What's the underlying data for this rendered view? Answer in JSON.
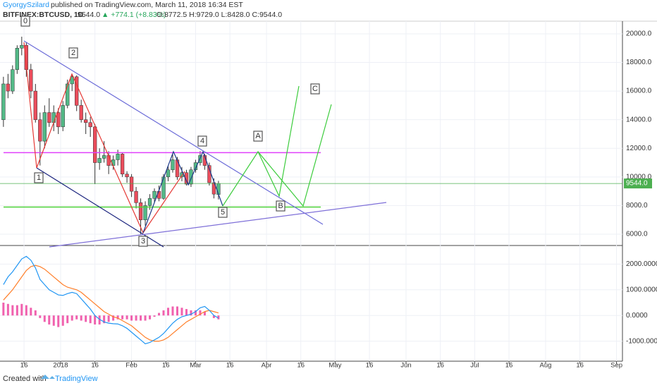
{
  "header": {
    "author": "GyorgySzilard",
    "published": "published on TradingView.com, March 11, 2018 16:34 EST",
    "symbol": "BITFINEX:BTCUSD, 1D",
    "price": "9544.0",
    "change": "▲ +774.1 (+8.83%)",
    "ohlc": "O:8772.5 H:9729.0 L:8428.0 C:9544.0"
  },
  "chart_data": [
    {
      "type": "candlestick",
      "x": [
        7,
        9,
        11,
        13,
        15,
        17,
        19,
        21,
        23,
        25,
        27,
        29,
        31,
        33,
        35,
        37,
        39,
        41,
        43,
        45,
        47,
        49,
        51,
        53,
        55,
        57,
        59,
        61,
        63,
        65,
        67,
        69,
        71,
        73,
        75,
        77,
        79,
        81,
        83,
        85,
        87,
        89,
        91,
        93,
        95,
        97,
        99,
        101
      ],
      "open": [
        14000,
        16500,
        16000,
        17500,
        19000,
        19200,
        17500,
        16000,
        14000,
        12500,
        14500,
        13800,
        14500,
        13500,
        15000,
        16500,
        17000,
        15000,
        14000,
        13800,
        13500,
        11000,
        11300,
        11500,
        10800,
        11200,
        11600,
        10200,
        10000,
        9000,
        8200,
        7000,
        8000,
        8500,
        9000,
        8500,
        10000,
        10500,
        11200,
        10000,
        10300,
        9500,
        10500,
        11000,
        11500,
        10800,
        9600,
        8772.5
      ],
      "high": [
        17000,
        17200,
        17800,
        19200,
        19800,
        19400,
        17900,
        16500,
        14500,
        15000,
        15500,
        15000,
        14800,
        15300,
        16800,
        17200,
        17100,
        15400,
        14500,
        14200,
        13700,
        12000,
        12500,
        11800,
        11500,
        11900,
        11700,
        10400,
        10200,
        9300,
        8500,
        8300,
        8800,
        9200,
        9400,
        10200,
        10800,
        11600,
        11400,
        10700,
        10500,
        10700,
        11200,
        11800,
        11600,
        11000,
        9900,
        9729
      ],
      "low": [
        13500,
        15500,
        15800,
        17200,
        18500,
        17000,
        15500,
        13800,
        10800,
        12000,
        13500,
        13200,
        13000,
        13200,
        14800,
        16000,
        14600,
        13800,
        13000,
        12800,
        9500,
        10500,
        11000,
        10200,
        10500,
        10800,
        10000,
        9600,
        8600,
        7800,
        6000,
        6600,
        7700,
        8200,
        8300,
        8400,
        9700,
        10300,
        9800,
        9700,
        9400,
        9300,
        10300,
        10800,
        10500,
        9400,
        8500,
        8428
      ],
      "close": [
        16500,
        16000,
        17500,
        19000,
        19200,
        17500,
        16000,
        14000,
        12500,
        14500,
        13800,
        14500,
        13500,
        15000,
        16500,
        17000,
        15000,
        14000,
        13800,
        13500,
        11000,
        11300,
        11500,
        10800,
        11200,
        11600,
        10200,
        10000,
        9000,
        8200,
        7000,
        8000,
        8500,
        9000,
        8500,
        10000,
        10500,
        11200,
        10000,
        10300,
        9500,
        10500,
        11000,
        11500,
        10800,
        9600,
        8800,
        9544
      ],
      "up_color": "#53b987",
      "down_color": "#eb4d5c",
      "xlim": [
        5.5,
        277.6
      ],
      "ylim": [
        5211,
        20885
      ],
      "yticks": [
        {
          "value": 6000,
          "label": "6000.0"
        },
        {
          "value": 8000,
          "label": "8000.0"
        },
        {
          "value": 10000,
          "label": "10000.0"
        },
        {
          "value": 12000,
          "label": "12000.0"
        },
        {
          "value": 14000,
          "label": "14000.0"
        },
        {
          "value": 16000,
          "label": "16000.0"
        },
        {
          "value": 18000,
          "label": "18000.0"
        },
        {
          "value": 20000,
          "label": "20000.0"
        }
      ],
      "price_line": {
        "value": 9544,
        "label": "9544.0",
        "color": "#4caf50"
      },
      "hlines": [
        {
          "value": 11700,
          "color": "#e040fb"
        },
        {
          "value": 7900,
          "color": "#4cd137"
        }
      ],
      "annotations": [
        "0",
        "1",
        "2",
        "3",
        "4",
        "5",
        "A",
        "B",
        "C"
      ]
    },
    {
      "type": "macd",
      "x": [
        7,
        9,
        11,
        13,
        15,
        17,
        19,
        21,
        23,
        25,
        27,
        29,
        31,
        33,
        35,
        37,
        39,
        41,
        43,
        45,
        47,
        49,
        51,
        53,
        55,
        57,
        59,
        61,
        63,
        65,
        67,
        69,
        71,
        73,
        75,
        77,
        79,
        81,
        83,
        85,
        87,
        89,
        91,
        93,
        95,
        97,
        99,
        101
      ],
      "xlim": [
        5.5,
        277.6
      ],
      "ylim": [
        -1778,
        2722
      ],
      "yticks": [
        {
          "value": -1000,
          "label": "-1000.0000"
        },
        {
          "value": 0,
          "label": "0.0000"
        },
        {
          "value": 1000,
          "label": "1000.0000"
        },
        {
          "value": 2000,
          "label": "2000.0000"
        }
      ],
      "xticks": [
        {
          "value": 16,
          "label": "16"
        },
        {
          "value": 32,
          "label": "2018"
        },
        {
          "value": 47,
          "label": "16"
        },
        {
          "value": 63,
          "label": "Feb"
        },
        {
          "value": 78,
          "label": "16"
        },
        {
          "value": 91,
          "label": "Mar"
        },
        {
          "value": 106,
          "label": "16"
        },
        {
          "value": 122,
          "label": "Apr"
        },
        {
          "value": 137,
          "label": "16"
        },
        {
          "value": 152,
          "label": "May"
        },
        {
          "value": 167,
          "label": "16"
        },
        {
          "value": 183,
          "label": "Jun"
        },
        {
          "value": 198,
          "label": "16"
        },
        {
          "value": 213,
          "label": "Jul"
        },
        {
          "value": 228,
          "label": "16"
        },
        {
          "value": 244,
          "label": "Aug"
        },
        {
          "value": 259,
          "label": "16"
        },
        {
          "value": 275,
          "label": "Sep"
        }
      ],
      "series": [
        {
          "color": "#e91e8c",
          "style": "histogram",
          "values": [
            500,
            450,
            400,
            400,
            450,
            400,
            300,
            200,
            -100,
            -250,
            -350,
            -400,
            -450,
            -400,
            -300,
            -200,
            -150,
            -200,
            -250,
            -300,
            -350,
            -350,
            -300,
            -250,
            -200,
            -150,
            -150,
            -150,
            -200,
            -200,
            -200,
            -200,
            -150,
            -50,
            100,
            200,
            300,
            350,
            350,
            300,
            250,
            200,
            200,
            200,
            150,
            0,
            -100,
            -150
          ]
        },
        {
          "color": "#ff7f2a",
          "style": "line",
          "values": [
            600,
            800,
            1000,
            1250,
            1500,
            1750,
            1900,
            1950,
            1900,
            1800,
            1650,
            1500,
            1350,
            1200,
            1100,
            1050,
            1000,
            900,
            750,
            600,
            450,
            300,
            150,
            50,
            -50,
            -100,
            -200,
            -300,
            -400,
            -550,
            -700,
            -850,
            -950,
            -1000,
            -1000,
            -950,
            -850,
            -700,
            -550,
            -400,
            -250,
            -150,
            -50,
            50,
            150,
            200,
            150,
            100
          ]
        },
        {
          "color": "#2196f3",
          "style": "line",
          "values": [
            1200,
            1500,
            1700,
            1950,
            2200,
            2300,
            2150,
            1850,
            1400,
            1200,
            1000,
            900,
            800,
            780,
            850,
            900,
            850,
            650,
            450,
            250,
            0,
            -150,
            -250,
            -300,
            -320,
            -330,
            -400,
            -500,
            -650,
            -800,
            -950,
            -1100,
            -1050,
            -950,
            -850,
            -700,
            -500,
            -300,
            -150,
            -50,
            0,
            50,
            150,
            300,
            350,
            200,
            0,
            -100
          ]
        }
      ]
    }
  ],
  "footer": {
    "created": "Created with",
    "brand": "TradingView"
  }
}
